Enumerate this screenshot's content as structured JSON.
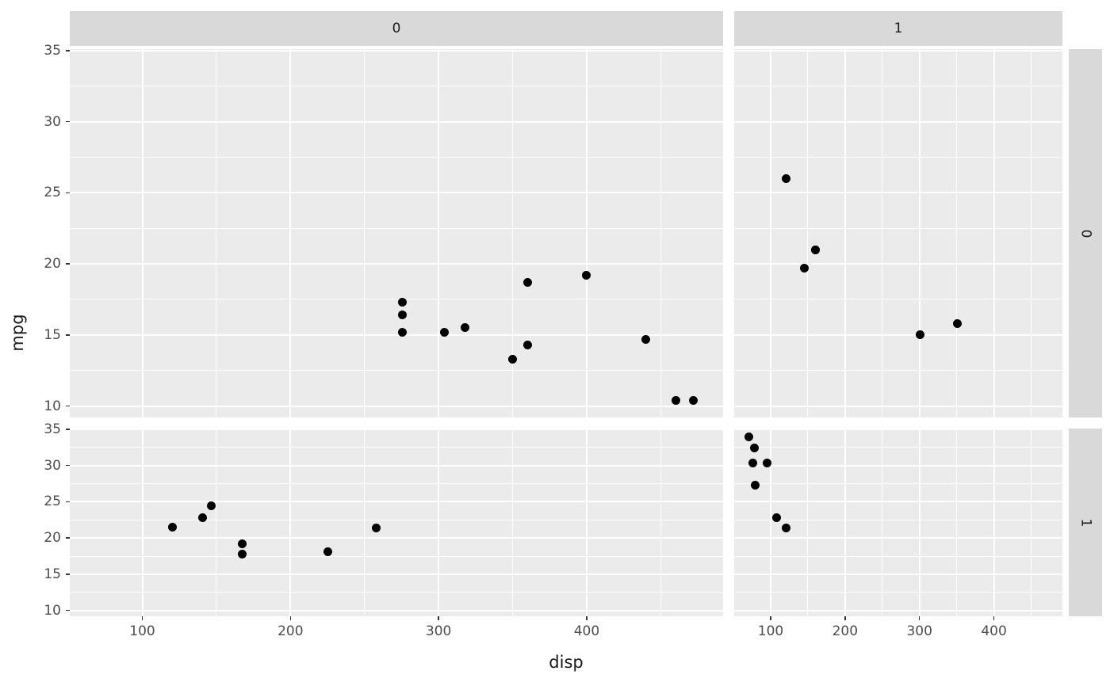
{
  "chart_data": {
    "type": "scatter",
    "title": "",
    "xlabel": "disp",
    "ylabel": "mpg",
    "x_ticks": [
      100,
      200,
      300,
      400
    ],
    "y_ticks": [
      35,
      30,
      25,
      20,
      15,
      10
    ],
    "x_minor_ticks": [
      150,
      250,
      350,
      450
    ],
    "y_minor_ticks": [
      12.5,
      17.5,
      22.5,
      27.5,
      32.5
    ],
    "x_range": [
      51.0,
      492.1
    ],
    "y_range": [
      9.2,
      35.1
    ],
    "grid": "on",
    "legend": "none",
    "facet": {
      "col_labels": [
        "0",
        "1"
      ],
      "row_labels": [
        "0",
        "1"
      ]
    },
    "series": [
      {
        "name": "facet col 0 / row 0",
        "col": 0,
        "row": 0,
        "points": [
          [
            275.8,
            17.3
          ],
          [
            275.8,
            16.4
          ],
          [
            275.8,
            15.2
          ],
          [
            304,
            15.2
          ],
          [
            318,
            15.5
          ],
          [
            350,
            13.3
          ],
          [
            360,
            18.7
          ],
          [
            360,
            14.3
          ],
          [
            400,
            19.2
          ],
          [
            440,
            14.7
          ],
          [
            460,
            10.4
          ],
          [
            472,
            10.4
          ]
        ]
      },
      {
        "name": "facet col 1 / row 0",
        "col": 1,
        "row": 0,
        "points": [
          [
            120.3,
            26.0
          ],
          [
            145,
            19.7
          ],
          [
            160,
            21.0
          ],
          [
            160,
            21.0
          ],
          [
            301,
            15.0
          ],
          [
            351,
            15.8
          ]
        ]
      },
      {
        "name": "facet col 0 / row 1",
        "col": 0,
        "row": 1,
        "points": [
          [
            120.1,
            21.5
          ],
          [
            140.8,
            22.8
          ],
          [
            146.7,
            24.4
          ],
          [
            167.6,
            19.2
          ],
          [
            167.6,
            17.8
          ],
          [
            225,
            18.1
          ],
          [
            258,
            21.4
          ]
        ]
      },
      {
        "name": "facet col 1 / row 1",
        "col": 1,
        "row": 1,
        "points": [
          [
            71.1,
            33.9
          ],
          [
            75.7,
            30.4
          ],
          [
            78.7,
            32.4
          ],
          [
            79,
            27.3
          ],
          [
            95.1,
            30.4
          ],
          [
            108,
            22.8
          ],
          [
            121,
            21.4
          ]
        ]
      }
    ],
    "colors": {
      "panel_bg": "#EBEBEB",
      "strip_bg": "#D9D9D9",
      "gridline": "#FFFFFF",
      "point": "#000000",
      "tick_label": "#4D4D4D",
      "axis_title": "#1A1A1A",
      "background": "#FFFFFF"
    }
  }
}
